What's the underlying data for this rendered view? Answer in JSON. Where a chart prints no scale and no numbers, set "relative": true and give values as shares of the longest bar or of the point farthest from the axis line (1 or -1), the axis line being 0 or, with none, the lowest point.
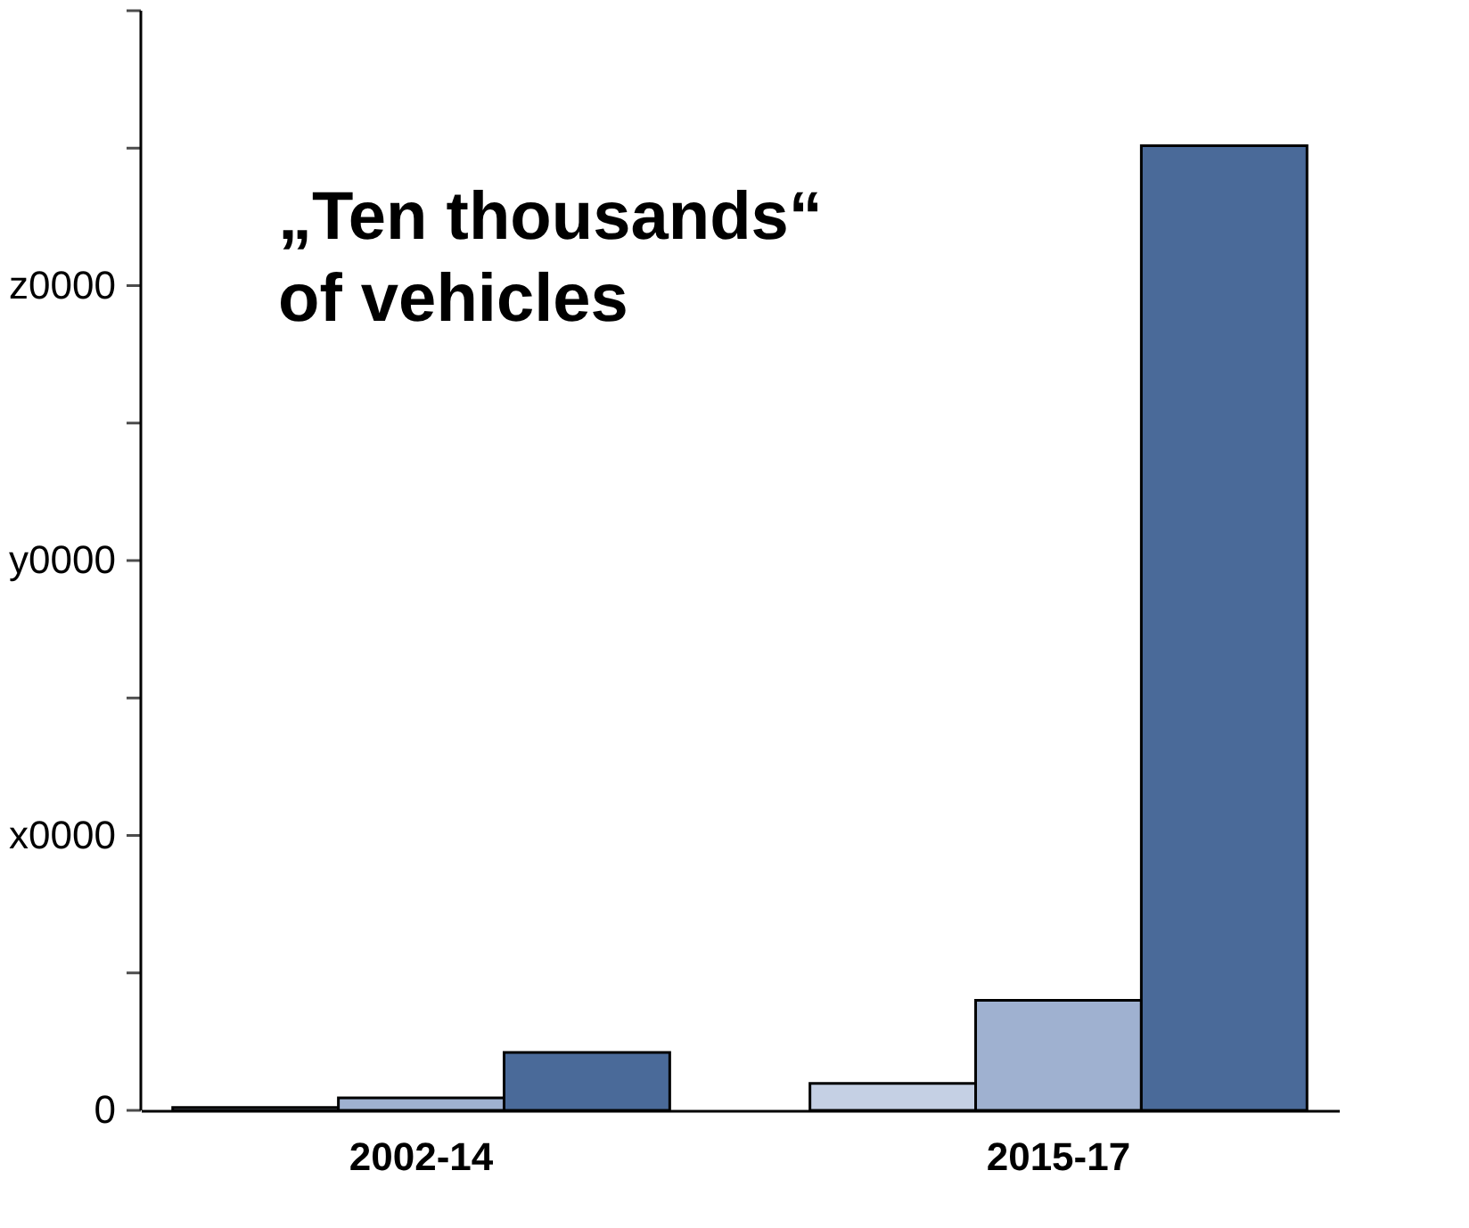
{
  "chart_data": {
    "type": "bar",
    "categories": [
      "2002-14",
      "2015-17"
    ],
    "series": [
      {
        "color": "#c5d0e4",
        "values": [
          0.003,
          0.028
        ]
      },
      {
        "color": "#9fb1d0",
        "values": [
          0.013,
          0.114
        ]
      },
      {
        "color": "#4a6a99",
        "values": [
          0.06,
          1
        ]
      }
    ],
    "relative": true,
    "annotations": [
      "„Ten thousands“\nof vehicles",
      "0",
      "x0000",
      "y0000",
      "z0000"
    ],
    "grid": false
  }
}
